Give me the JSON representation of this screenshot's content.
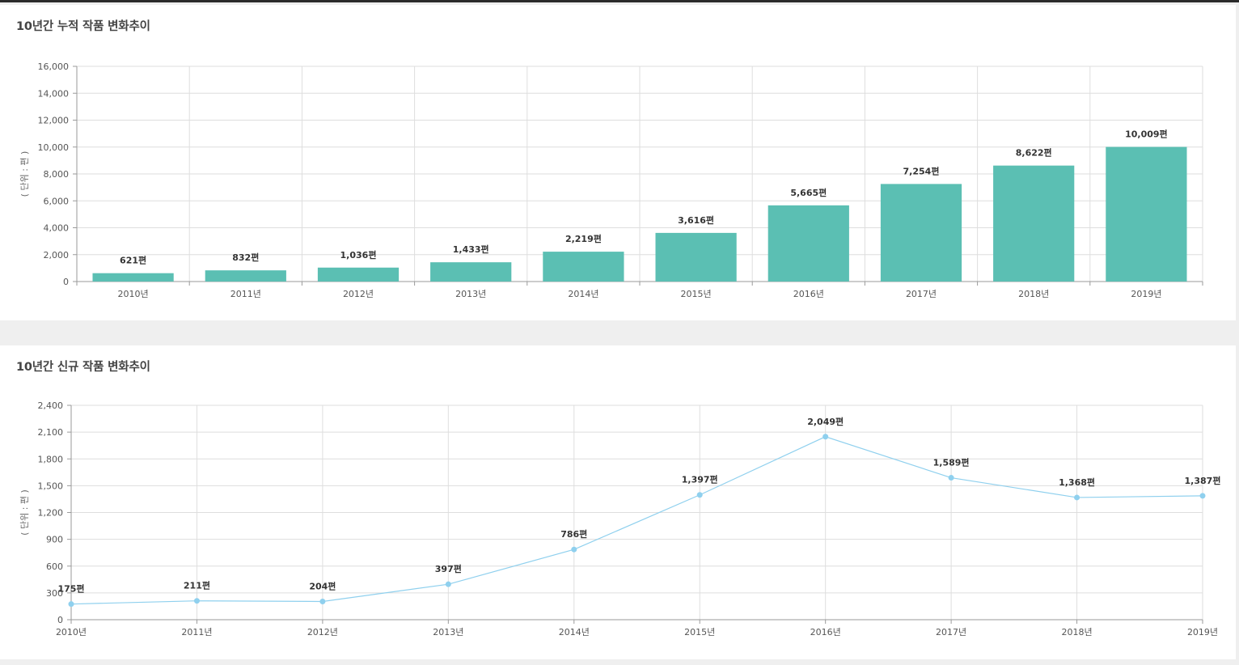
{
  "charts": {
    "cumulative": {
      "title": "10년간 누적 작품 변화추이",
      "chart_data": {
        "type": "bar",
        "categories": [
          "2010년",
          "2011년",
          "2012년",
          "2013년",
          "2014년",
          "2015년",
          "2016년",
          "2017년",
          "2018년",
          "2019년"
        ],
        "values": [
          621,
          832,
          1036,
          1433,
          2219,
          3616,
          5665,
          7254,
          8622,
          10009
        ],
        "value_labels": [
          "621편",
          "832편",
          "1,036편",
          "1,433편",
          "2,219편",
          "3,616편",
          "5,665편",
          "7,254편",
          "8,622편",
          "10,009편"
        ],
        "ylabel": "( 단위 : 편 )",
        "ylim": [
          0,
          16000
        ],
        "yticks": [
          0,
          2000,
          4000,
          6000,
          8000,
          10000,
          12000,
          14000,
          16000
        ],
        "ytick_labels": [
          "0",
          "2,000",
          "4,000",
          "6,000",
          "8,000",
          "10,000",
          "12,000",
          "14,000",
          "16,000"
        ],
        "grid": true,
        "bar_color": "#5bbfb3"
      }
    },
    "new": {
      "title": "10년간 신규 작품 변화추이",
      "chart_data": {
        "type": "line",
        "categories": [
          "2010년",
          "2011년",
          "2012년",
          "2013년",
          "2014년",
          "2015년",
          "2016년",
          "2017년",
          "2018년",
          "2019년"
        ],
        "values": [
          175,
          211,
          204,
          397,
          786,
          1397,
          2049,
          1589,
          1368,
          1387
        ],
        "value_labels": [
          "175편",
          "211편",
          "204편",
          "397편",
          "786편",
          "1,397편",
          "2,049편",
          "1,589편",
          "1,368편",
          "1,387편"
        ],
        "ylabel": "( 단위 : 편 )",
        "ylim": [
          0,
          2400
        ],
        "yticks": [
          0,
          300,
          600,
          900,
          1200,
          1500,
          1800,
          2100,
          2400
        ],
        "ytick_labels": [
          "0",
          "300",
          "600",
          "900",
          "1,200",
          "1,500",
          "1,800",
          "2,100",
          "2,400"
        ],
        "grid": true,
        "line_color": "#8fd0ee"
      }
    }
  }
}
